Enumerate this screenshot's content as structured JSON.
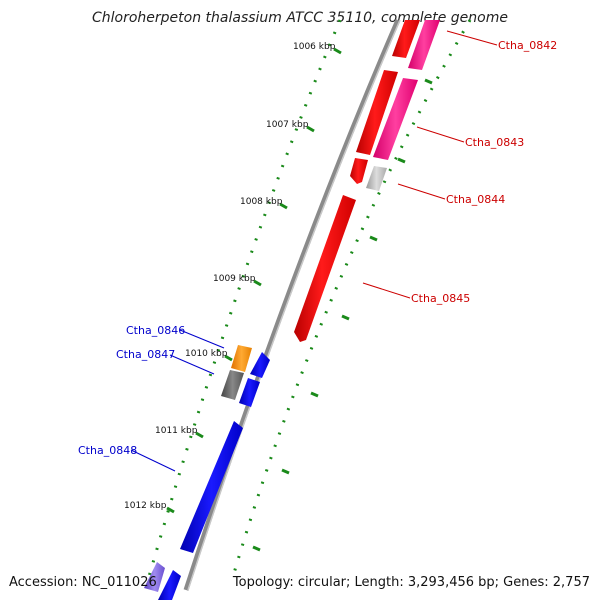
{
  "title": "Chloroherpeton thalassium ATCC 35110, complete genome",
  "footer": {
    "accession": "Accession: NC_011026",
    "summary": "Topology: circular; Length: 3,293,456 bp; Genes: 2,757"
  },
  "ticks": [
    "1006 kbp",
    "1007 kbp",
    "1008 kbp",
    "1009 kbp",
    "1010 kbp",
    "1011 kbp",
    "1012 kbp"
  ],
  "genes": [
    {
      "name": "Ctha_0842",
      "strand": "forward",
      "color": "#cc0000"
    },
    {
      "name": "Ctha_0843",
      "strand": "forward",
      "color": "#cc0000"
    },
    {
      "name": "Ctha_0844",
      "strand": "forward",
      "color": "#cc0000"
    },
    {
      "name": "Ctha_0845",
      "strand": "forward",
      "color": "#cc0000"
    },
    {
      "name": "Ctha_0846",
      "strand": "reverse",
      "color": "#0000cc"
    },
    {
      "name": "Ctha_0847",
      "strand": "reverse",
      "color": "#0000cc"
    },
    {
      "name": "Ctha_0848",
      "strand": "reverse",
      "color": "#0000cc"
    }
  ],
  "colors": {
    "forward_cds": "#ff0000",
    "forward_rna": "#ff3399",
    "reverse_cds": "#0000ff",
    "orange_feature": "#ff8c00",
    "gray_feature": "#666666",
    "tick_marks": "#1a8a1a",
    "backbone": "#888888"
  }
}
